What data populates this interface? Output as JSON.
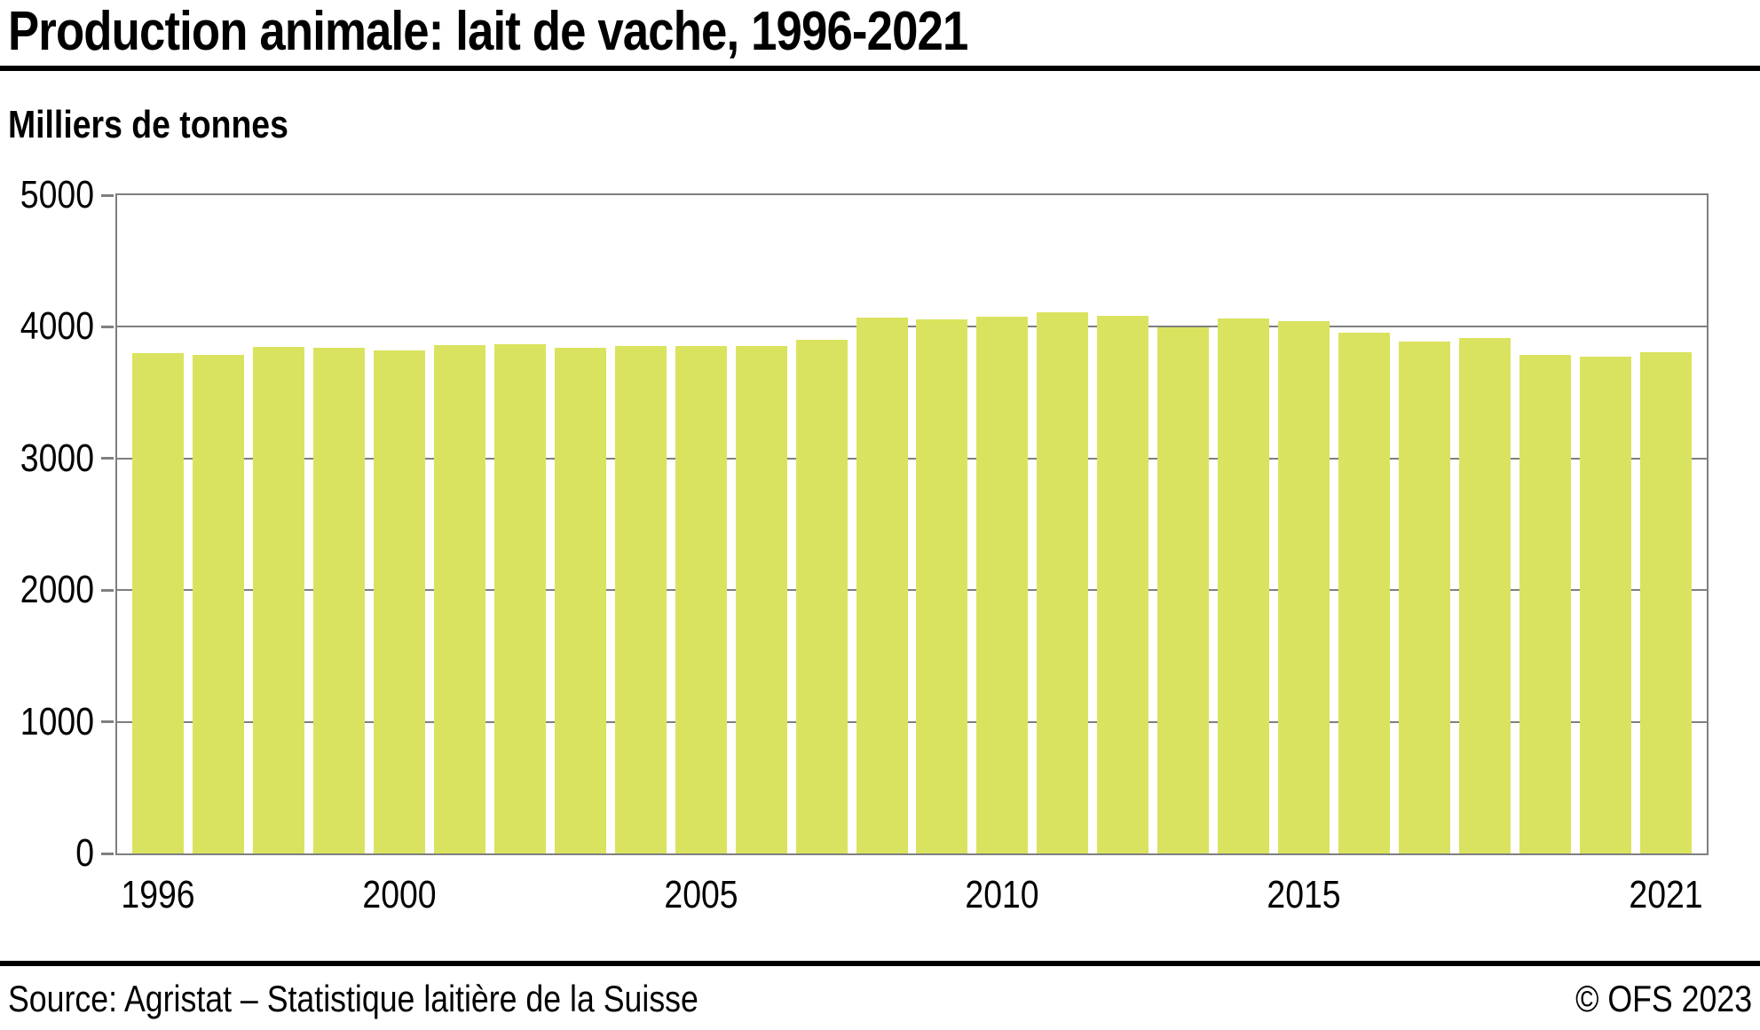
{
  "title": "Production animale: lait de vache, 1996-2021",
  "unit_label": "Milliers de tonnes",
  "footer": {
    "source": "Source: Agristat – Statistique laitière de la Suisse",
    "copyright": "© OFS 2023"
  },
  "colors": {
    "bar": "#dae35f",
    "grid": "#7f7f7f",
    "text": "#000000",
    "rule": "#000000"
  },
  "chart_data": {
    "type": "bar",
    "title": "Production animale: lait de vache, 1996-2021",
    "xlabel": "",
    "ylabel": "Milliers de tonnes",
    "categories": [
      1996,
      1997,
      1998,
      1999,
      2000,
      2001,
      2002,
      2003,
      2004,
      2005,
      2006,
      2007,
      2008,
      2009,
      2010,
      2011,
      2012,
      2013,
      2014,
      2015,
      2016,
      2017,
      2018,
      2019,
      2020,
      2021
    ],
    "values": [
      3800,
      3790,
      3850,
      3840,
      3820,
      3860,
      3870,
      3840,
      3855,
      3855,
      3855,
      3900,
      4070,
      4060,
      4080,
      4110,
      4085,
      3995,
      4065,
      4045,
      3955,
      3890,
      3915,
      3785,
      3775,
      3810
    ],
    "ylim": [
      0,
      5000
    ],
    "yticks": [
      0,
      1000,
      2000,
      3000,
      4000,
      5000
    ],
    "xticks": [
      1996,
      2000,
      2005,
      2010,
      2015,
      2021
    ],
    "grid": true,
    "legend": false
  }
}
